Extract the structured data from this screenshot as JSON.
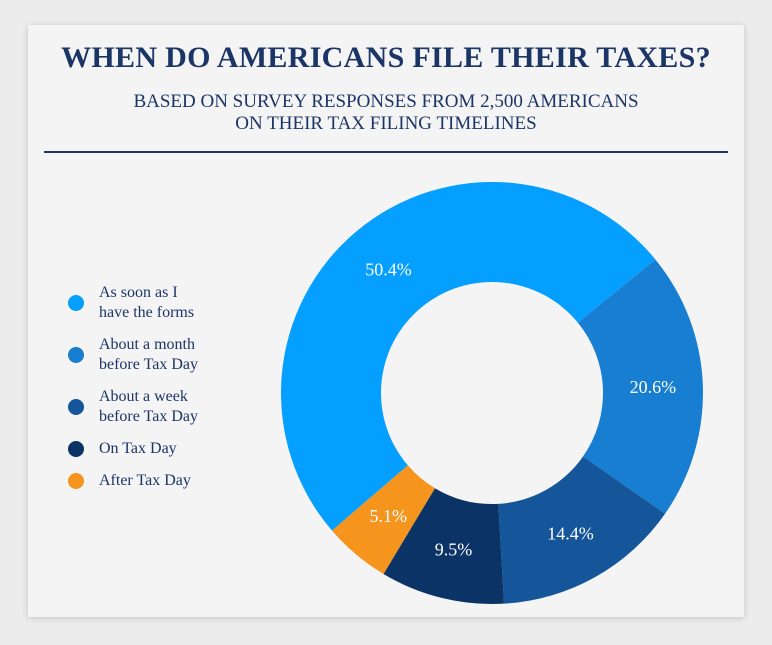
{
  "header": {
    "title": "WHEN DO AMERICANS FILE THEIR TAXES?",
    "subtitle_line1": "BASED ON SURVEY RESPONSES FROM 2,500 AMERICANS",
    "subtitle_line2": "ON THEIR TAX FILING TIMELINES"
  },
  "chart_data": {
    "type": "pie",
    "donut": true,
    "title": "WHEN DO AMERICANS FILE THEIR TAXES?",
    "subtitle": "BASED ON SURVEY RESPONSES FROM 2,500 AMERICANS ON THEIR TAX FILING TIMELINES",
    "legend_position": "left",
    "slices": [
      {
        "label_lines": [
          "As soon as I",
          "have the forms"
        ],
        "value": 50.4,
        "display": "50.4%",
        "color": "#049fff"
      },
      {
        "label_lines": [
          "About a month",
          "before Tax Day"
        ],
        "value": 20.6,
        "display": "20.6%",
        "color": "#187ed1"
      },
      {
        "label_lines": [
          "About a week",
          "before Tax Day"
        ],
        "value": 14.4,
        "display": "14.4%",
        "color": "#15569a"
      },
      {
        "label_lines": [
          "On Tax Day"
        ],
        "value": 9.5,
        "display": "9.5%",
        "color": "#0b3366"
      },
      {
        "label_lines": [
          "After Tax Day"
        ],
        "value": 5.1,
        "display": "5.1%",
        "color": "#f6951e"
      }
    ]
  }
}
